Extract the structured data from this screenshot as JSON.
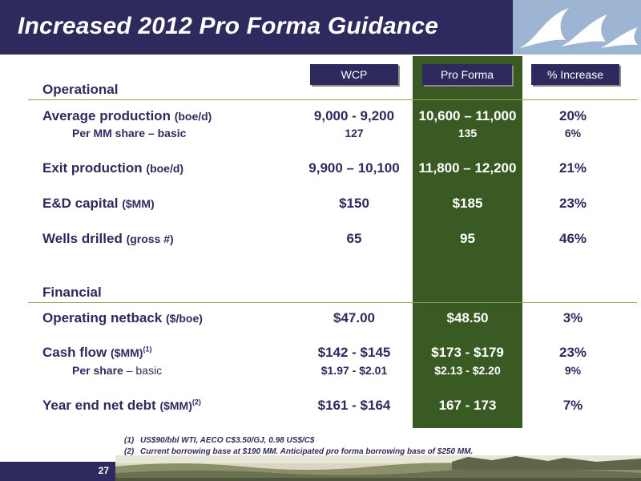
{
  "title": "Increased 2012 Pro Forma Guidance",
  "columns": {
    "wcp": "WCP",
    "pro_forma": "Pro Forma",
    "increase": "% Increase"
  },
  "sections": {
    "operational": "Operational",
    "financial": "Financial"
  },
  "rows": [
    {
      "label": "Average production",
      "unit": "(boe/d)",
      "sup": "",
      "wcp": "9,000 - 9,200",
      "pro_forma": "10,600 – 11,000",
      "increase": "20%"
    },
    {
      "label": "Per MM share – basic",
      "unit": "",
      "sup": "",
      "wcp": "127",
      "pro_forma": "135",
      "increase": "6%"
    },
    {
      "label": "Exit production",
      "unit": "(boe/d)",
      "sup": "",
      "wcp": "9,900 – 10,100",
      "pro_forma": "11,800 – 12,200",
      "increase": "21%"
    },
    {
      "label": "E&D capital",
      "unit": "($MM)",
      "sup": "",
      "wcp": "$150",
      "pro_forma": "$185",
      "increase": "23%"
    },
    {
      "label": "Wells drilled",
      "unit": "(gross #)",
      "sup": "",
      "wcp": "65",
      "pro_forma": "95",
      "increase": "46%"
    },
    {
      "label": "Operating netback",
      "unit": "($/boe)",
      "sup": "",
      "wcp": "$47.00",
      "pro_forma": "$48.50",
      "increase": "3%"
    },
    {
      "label": "Cash flow",
      "unit": "($MM)",
      "sup": "(1)",
      "wcp": "$142 - $145",
      "pro_forma": "$173 - $179",
      "increase": "23%"
    },
    {
      "label": "Per share",
      "unit": "– basic",
      "sup": "",
      "wcp": "$1.97 - $2.01",
      "pro_forma": "$2.13 - $2.20",
      "increase": "9%"
    },
    {
      "label": "Year end net debt",
      "unit": "($MM)",
      "sup": "(2)",
      "wcp": "$161 - $164",
      "pro_forma": "167 - 173",
      "increase": "7%"
    }
  ],
  "footnotes": [
    {
      "num": "(1)",
      "text": "US$90/bbl WTI, AECO C$3.50/GJ, 0.98 US$/C$"
    },
    {
      "num": "(2)",
      "text": "Current borrowing base at $190 MM.  Anticipated pro forma borrowing base of $250 MM."
    }
  ],
  "page_number": "27",
  "colors": {
    "navy": "#2f2a5e",
    "green": "#3a5a24",
    "logo_blue": "#9db4d3"
  }
}
